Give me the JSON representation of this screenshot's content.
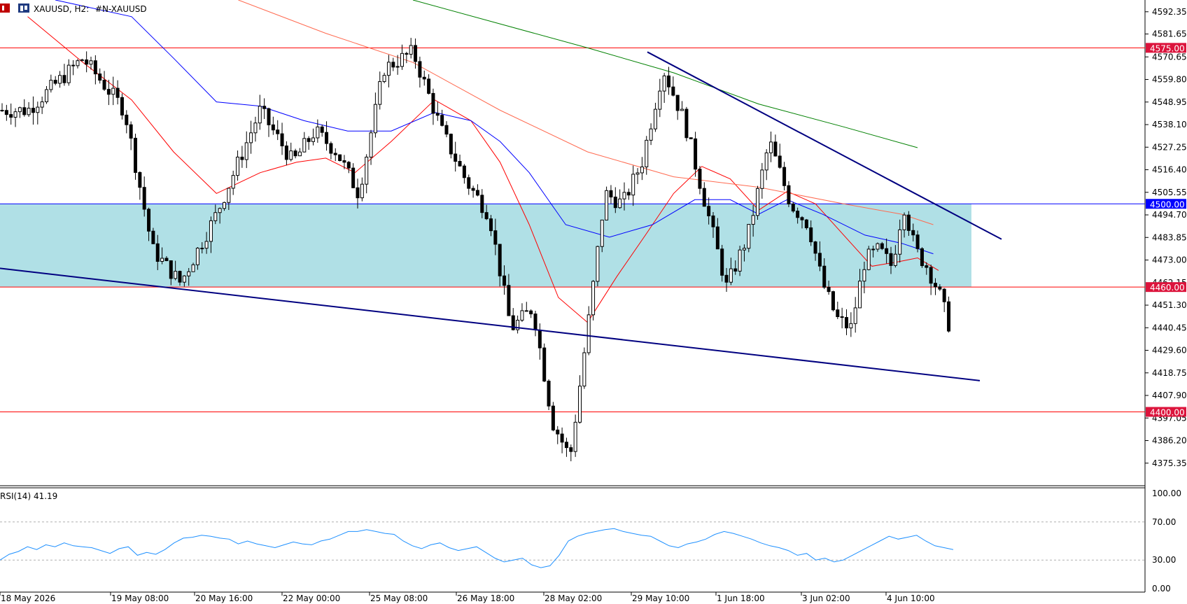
{
  "header": {
    "symbol": "XAUUSD, H2:",
    "description": "#N-XAUUSD"
  },
  "rsi_panel": {
    "label": "RSI(14) 41.19",
    "levels": [
      "100.00",
      "70.00",
      "30.00",
      "0.00"
    ]
  },
  "colors": {
    "candle": "#000000",
    "ma_fast": "#ff0000",
    "ma_mid": "#0000ff",
    "ma_slow_light": "#ff6a50",
    "ma_slow": "#008000",
    "zone_fill": "#b0e0e6",
    "hline_red": "#ff0000",
    "hline_blue": "#0000ff",
    "trendline": "#000080",
    "rsi_line": "#1e90ff",
    "price_tag_red": "#dc143c",
    "price_tag_blue": "#0000ff"
  },
  "chart_data": {
    "type": "candlestick",
    "title": "XAUUSD, H2",
    "ylim": [
      4364.5,
      4598
    ],
    "y_ticks": [
      "4592.35",
      "4581.65",
      "4570.65",
      "4559.80",
      "4548.95",
      "4538.10",
      "4527.25",
      "4516.40",
      "4505.55",
      "4494.70",
      "4483.85",
      "4473.00",
      "4451.30",
      "4440.45",
      "4429.60",
      "4418.75",
      "4407.90",
      "4397.05",
      "4386.20",
      "4375.35"
    ],
    "x_labels": [
      "18 May 2026",
      "19 May 08:00",
      "20 May 16:00",
      "22 May 00:00",
      "25 May 08:00",
      "26 May 18:00",
      "28 May 02:00",
      "29 May 10:00",
      "1 Jun 18:00",
      "3 Jun 02:00",
      "4 Jun 10:00"
    ],
    "horizontal_levels": [
      {
        "price": 4575.0,
        "label": "4575.00",
        "color": "red"
      },
      {
        "price": 4500.0,
        "label": "4500.00",
        "color": "blue"
      },
      {
        "price": 4460.0,
        "label": "4460.00",
        "color": "red"
      },
      {
        "price": 4400.0,
        "label": "4400.00",
        "color": "red"
      }
    ],
    "partial_tick_label": "4462.15",
    "zone": {
      "top": 4500.0,
      "bottom": 4460.0
    },
    "anchors": [
      {
        "label": "18 May 2026",
        "price": 4545
      },
      {
        "label": "18 May 2026",
        "price": 4570
      },
      {
        "label": "19 May 08:00",
        "price": 4545
      },
      {
        "label": "19 May 08:00",
        "price": 4478
      },
      {
        "label": "19 May 08:00",
        "price": 4462
      },
      {
        "label": "20 May 16:00",
        "price": 4495
      },
      {
        "label": "20 May 16:00",
        "price": 4545
      },
      {
        "label": "22 May 00:00",
        "price": 4520
      },
      {
        "label": "22 May 00:00",
        "price": 4535
      },
      {
        "label": "22 May 00:00",
        "price": 4525
      },
      {
        "label": "22 May 00:00",
        "price": 4505
      },
      {
        "label": "25 May 08:00",
        "price": 4565
      },
      {
        "label": "25 May 08:00",
        "price": 4573
      },
      {
        "label": "25 May 08:00",
        "price": 4535
      },
      {
        "label": "26 May 18:00",
        "price": 4510
      },
      {
        "label": "26 May 18:00",
        "price": 4495
      },
      {
        "label": "26 May 18:00",
        "price": 4440
      },
      {
        "label": "26 May 18:00",
        "price": 4450
      },
      {
        "label": "28 May 02:00",
        "price": 4395
      },
      {
        "label": "28 May 02:00",
        "price": 4378
      },
      {
        "label": "28 May 02:00",
        "price": 4440
      },
      {
        "label": "28 May 02:00",
        "price": 4505
      },
      {
        "label": "28 May 02:00",
        "price": 4500
      },
      {
        "label": "29 May 10:00",
        "price": 4520
      },
      {
        "label": "29 May 10:00",
        "price": 4565
      },
      {
        "label": "29 May 10:00",
        "price": 4540
      },
      {
        "label": "29 May 10:00",
        "price": 4500
      },
      {
        "label": "1 Jun 18:00",
        "price": 4460
      },
      {
        "label": "1 Jun 18:00",
        "price": 4485
      },
      {
        "label": "1 Jun 18:00",
        "price": 4530
      },
      {
        "label": "1 Jun 18:00",
        "price": 4500
      },
      {
        "label": "3 Jun 02:00",
        "price": 4490
      },
      {
        "label": "3 Jun 02:00",
        "price": 4462
      },
      {
        "label": "3 Jun 02:00",
        "price": 4445
      },
      {
        "label": "3 Jun 02:00",
        "price": 4440
      },
      {
        "label": "3 Jun 02:00",
        "price": 4473
      },
      {
        "label": "3 Jun 02:00",
        "price": 4478
      },
      {
        "label": "4 Jun 10:00",
        "price": 4470
      },
      {
        "label": "4 Jun 10:00",
        "price": 4500
      },
      {
        "label": "4 Jun 10:00",
        "price": 4478
      },
      {
        "label": "4 Jun 10:00",
        "price": 4470
      },
      {
        "label": "4 Jun 10:00",
        "price": 4458
      },
      {
        "label": "4 Jun 10:00",
        "price": 4440
      }
    ],
    "ma_fast_anchors": [
      {
        "label": "18 May 2026",
        "price": 4590
      },
      {
        "label": "18 May 2026",
        "price": 4568
      },
      {
        "label": "19 May 08:00",
        "price": 4550
      },
      {
        "label": "19 May 08:00",
        "price": 4525
      },
      {
        "label": "20 May 16:00",
        "price": 4505
      },
      {
        "label": "20 May 16:00",
        "price": 4515
      },
      {
        "label": "22 May 00:00",
        "price": 4520
      },
      {
        "label": "22 May 00:00",
        "price": 4522
      },
      {
        "label": "22 May 00:00",
        "price": 4515
      },
      {
        "label": "25 May 08:00",
        "price": 4530
      },
      {
        "label": "25 May 08:00",
        "price": 4550
      },
      {
        "label": "26 May 18:00",
        "price": 4540
      },
      {
        "label": "26 May 18:00",
        "price": 4520
      },
      {
        "label": "26 May 18:00",
        "price": 4490
      },
      {
        "label": "28 May 02:00",
        "price": 4455
      },
      {
        "label": "28 May 02:00",
        "price": 4443
      },
      {
        "label": "28 May 02:00",
        "price": 4465
      },
      {
        "label": "29 May 10:00",
        "price": 4485
      },
      {
        "label": "29 May 10:00",
        "price": 4505
      },
      {
        "label": "29 May 10:00",
        "price": 4518
      },
      {
        "label": "1 Jun 18:00",
        "price": 4512
      },
      {
        "label": "1 Jun 18:00",
        "price": 4497
      },
      {
        "label": "1 Jun 18:00",
        "price": 4506
      },
      {
        "label": "3 Jun 02:00",
        "price": 4500
      },
      {
        "label": "3 Jun 02:00",
        "price": 4485
      },
      {
        "label": "3 Jun 02:00",
        "price": 4470
      },
      {
        "label": "4 Jun 10:00",
        "price": 4472
      },
      {
        "label": "4 Jun 10:00",
        "price": 4474
      },
      {
        "label": "4 Jun 10:00",
        "price": 4468
      }
    ],
    "ma_mid_anchors": [
      {
        "label": "18 May 2026",
        "price": 4598
      },
      {
        "label": "19 May 08:00",
        "price": 4590
      },
      {
        "label": "19 May 08:00",
        "price": 4570
      },
      {
        "label": "20 May 16:00",
        "price": 4549
      },
      {
        "label": "20 May 16:00",
        "price": 4547
      },
      {
        "label": "22 May 00:00",
        "price": 4540
      },
      {
        "label": "22 May 00:00",
        "price": 4535
      },
      {
        "label": "25 May 08:00",
        "price": 4535
      },
      {
        "label": "25 May 08:00",
        "price": 4544
      },
      {
        "label": "26 May 18:00",
        "price": 4540
      },
      {
        "label": "26 May 18:00",
        "price": 4530
      },
      {
        "label": "26 May 18:00",
        "price": 4515
      },
      {
        "label": "28 May 02:00",
        "price": 4490
      },
      {
        "label": "28 May 02:00",
        "price": 4484
      },
      {
        "label": "29 May 10:00",
        "price": 4490
      },
      {
        "label": "29 May 10:00",
        "price": 4502
      },
      {
        "label": "1 Jun 18:00",
        "price": 4502
      },
      {
        "label": "1 Jun 18:00",
        "price": 4495
      },
      {
        "label": "1 Jun 18:00",
        "price": 4502
      },
      {
        "label": "3 Jun 02:00",
        "price": 4495
      },
      {
        "label": "3 Jun 02:00",
        "price": 4485
      },
      {
        "label": "4 Jun 10:00",
        "price": 4481
      },
      {
        "label": "4 Jun 10:00",
        "price": 4476
      }
    ],
    "ma_slow_light_anchors": [
      {
        "label": "20 May 16:00",
        "price": 4598
      },
      {
        "label": "22 May 00:00",
        "price": 4582
      },
      {
        "label": "25 May 08:00",
        "price": 4568
      },
      {
        "label": "26 May 18:00",
        "price": 4545
      },
      {
        "label": "28 May 02:00",
        "price": 4525
      },
      {
        "label": "29 May 10:00",
        "price": 4513
      },
      {
        "label": "1 Jun 18:00",
        "price": 4508
      },
      {
        "label": "3 Jun 02:00",
        "price": 4500
      },
      {
        "label": "4 Jun 10:00",
        "price": 4495
      },
      {
        "label": "4 Jun 10:00",
        "price": 4490
      }
    ],
    "ma_slow_anchors": [
      {
        "label": "25 May 08:00",
        "price": 4598
      },
      {
        "label": "28 May 02:00",
        "price": 4575
      },
      {
        "label": "29 May 10:00",
        "price": 4563
      },
      {
        "label": "1 Jun 18:00",
        "price": 4548
      },
      {
        "label": "3 Jun 02:00",
        "price": 4537
      },
      {
        "label": "4 Jun 10:00",
        "price": 4527
      }
    ],
    "trendlines": [
      {
        "from": {
          "label": "18 May 2026",
          "price": 4469
        },
        "to": {
          "label": "4 Jun 10:00",
          "price": 4415
        }
      },
      {
        "from": {
          "label": "29 May 10:00",
          "price": 4573
        },
        "to": {
          "label": "4 Jun 10:00",
          "price": 4483
        }
      }
    ],
    "rsi": {
      "period": 14,
      "last": 41.19,
      "ylim": [
        0,
        100
      ],
      "levels": [
        70,
        30
      ],
      "values": [
        30,
        36,
        39,
        44,
        41,
        46,
        44,
        48,
        45,
        44,
        43,
        40,
        37,
        42,
        44,
        35,
        38,
        36,
        41,
        48,
        53,
        54,
        56,
        55,
        53,
        52,
        47,
        50,
        47,
        45,
        43,
        46,
        49,
        47,
        46,
        50,
        52,
        56,
        60,
        60,
        62,
        60,
        58,
        57,
        50,
        45,
        42,
        46,
        48,
        43,
        40,
        42,
        44,
        38,
        32,
        28,
        30,
        32,
        25,
        22,
        24,
        35,
        50,
        55,
        58,
        60,
        62,
        63,
        60,
        58,
        56,
        55,
        50,
        45,
        43,
        47,
        49,
        52,
        57,
        60,
        58,
        55,
        52,
        48,
        45,
        43,
        40,
        35,
        37,
        30,
        32,
        28,
        30,
        35,
        40,
        45,
        50,
        55,
        52,
        54,
        56,
        50,
        45,
        43,
        41
      ]
    }
  }
}
